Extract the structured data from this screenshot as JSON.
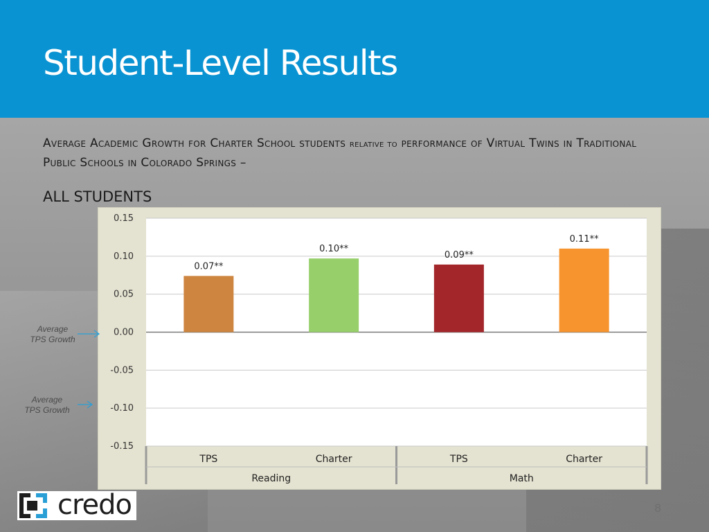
{
  "slide": {
    "title": "Student-Level Results",
    "subtitle_part1": "Average Academic Growth for Charter School students",
    "subtitle_part2": "relative to",
    "subtitle_part3": "performance of Virtual Twins in Traditional Public Schools in Colorado Springs –",
    "subtitle_line2": "ALL STUDENTS",
    "page_number": "8"
  },
  "annotations": [
    {
      "text_line1": "Average",
      "text_line2": "TPS Growth"
    },
    {
      "text_line1": "Average",
      "text_line2": "TPS Growth"
    }
  ],
  "logo": {
    "text": "credo"
  },
  "chart_data": {
    "type": "bar",
    "title": "",
    "xlabel": "",
    "ylabel": "",
    "ylim": [
      -0.15,
      0.15
    ],
    "yticks": [
      "0.15",
      "0.10",
      "0.05",
      "0.00",
      "-0.05",
      "-0.10",
      "-0.15"
    ],
    "grid": true,
    "categories": [
      "TPS",
      "Charter",
      "TPS",
      "Charter"
    ],
    "groups": [
      {
        "label": "Reading",
        "categories": [
          "TPS",
          "Charter"
        ]
      },
      {
        "label": "Math",
        "categories": [
          "TPS",
          "Charter"
        ]
      }
    ],
    "values": [
      0.074,
      0.097,
      0.089,
      0.11
    ],
    "data_labels": [
      "0.07**",
      "0.10**",
      "0.09**",
      "0.11**"
    ],
    "colors": [
      "#cd853f",
      "#97d06b",
      "#a3262a",
      "#f7942d"
    ]
  }
}
